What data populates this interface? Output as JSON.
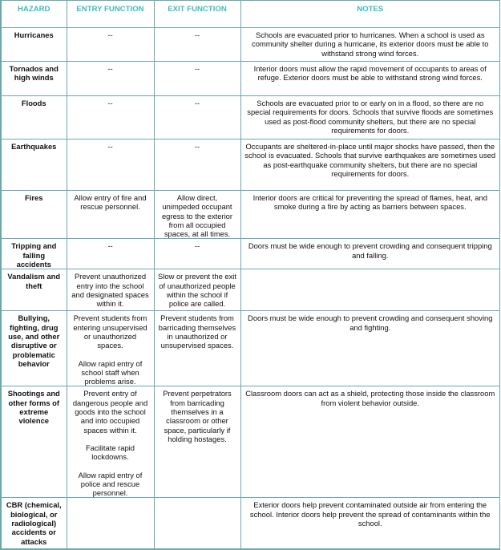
{
  "headers": [
    "HAZARD",
    "ENTRY FUNCTION",
    "EXIT FUNCTION",
    "NOTES"
  ],
  "rows": [
    {
      "hazard": "Hurricanes",
      "entry": [
        "--"
      ],
      "exit": [
        "--"
      ],
      "notes": "Schools are evacuated prior to hurricanes. When a school is used as community shelter during a hurricane, its exterior doors must be able to withstand strong wind forces."
    },
    {
      "hazard": "Tornados and high winds",
      "entry": [
        "--"
      ],
      "exit": [
        "--"
      ],
      "notes": "Interior doors must allow the rapid movement of occupants to areas of refuge. Exterior doors must be able to withstand strong wind forces."
    },
    {
      "hazard": "Floods",
      "entry": [
        "--"
      ],
      "exit": [
        "--"
      ],
      "notes": "Schools are evacuated prior to or early on in a flood, so there are no special requirements for doors. Schools that survive floods are sometimes used as post-flood community shelters, but there are no special requirements for doors."
    },
    {
      "hazard": "Earthquakes",
      "entry": [
        "--"
      ],
      "exit": [
        "--"
      ],
      "notes": "Occupants are sheltered-in-place until major shocks have passed, then the school is evacuated. Schools that survive earthquakes are sometimes used as post-earthquake community shelters, but there are no special requirements for doors."
    },
    {
      "hazard": "Fires",
      "entry": [
        "Allow entry of fire and rescue personnel."
      ],
      "exit": [
        "Allow direct, unimpeded occupant egress to the exterior from all occupied spaces, at all times."
      ],
      "notes": "Interior doors are critical for preventing the spread of flames, heat, and smoke during a fire by acting as barriers between spaces."
    },
    {
      "hazard": "Tripping and falling accidents",
      "entry": [
        "--"
      ],
      "exit": [
        "--"
      ],
      "notes": "Doors must be wide enough to prevent crowding and consequent tripping and falling."
    },
    {
      "hazard": "Vandalism and theft",
      "entry": [
        "Prevent unauthorized entry into the school and designated spaces within it."
      ],
      "exit": [
        "Slow or prevent the exit of unauthorized people within the school if police are called."
      ],
      "notes": ""
    },
    {
      "hazard": "Bullying, fighting, drug use, and other disruptive or problematic behavior",
      "entry": [
        "Prevent students from entering unsupervised or unauthorized spaces.",
        "Allow rapid entry of school staff when problems arise."
      ],
      "exit": [
        "Prevent students from barricading themselves in unauthorized or unsupervised spaces."
      ],
      "notes": "Doors must be wide enough to prevent crowding and consequent shoving and fighting."
    },
    {
      "hazard": "Shootings and other forms of extreme violence",
      "entry": [
        "Prevent entry of dangerous people and goods into the school and into occupied spaces within it.",
        "Facilitate rapid lockdowns.",
        "Allow rapid entry of police and rescue personnel."
      ],
      "exit": [
        "Prevent perpetrators from barricading themselves in a classroom or other space, particularly if holding hostages."
      ],
      "notes": "Classroom doors can act as a shield, protecting those inside the classroom from violent behavior outside."
    },
    {
      "hazard": "CBR (chemical, biological, or radiological) accidents or attacks",
      "entry": [],
      "exit": [],
      "notes": "Exterior doors help prevent contaminated outside air from entering the school. Interior doors help prevent the spread of contaminants within the school."
    }
  ]
}
